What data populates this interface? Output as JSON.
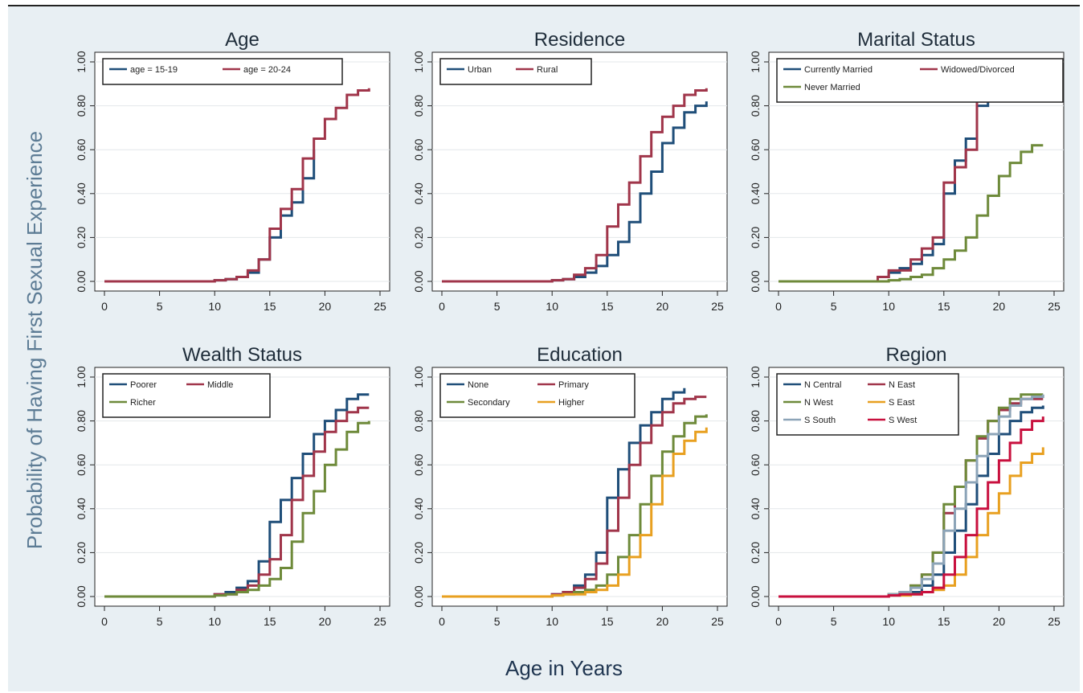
{
  "figure": {
    "xlabel": "Age in Years",
    "ylabel": "Probability of Having First Sexual Experience"
  },
  "chart_data": [
    {
      "type": "line",
      "title": "Age",
      "xlim": [
        0,
        25
      ],
      "ylim": [
        0,
        1
      ],
      "x_ticks": [
        "0",
        "5",
        "10",
        "15",
        "20",
        "25"
      ],
      "y_ticks": [
        "0.00",
        "0.20",
        "0.40",
        "0.60",
        "0.80",
        "1.00"
      ],
      "legend_columns": 2,
      "series": [
        {
          "name": "age = 15-19",
          "color": "#1f4e79",
          "x": [
            0,
            10,
            11,
            12,
            13,
            14,
            15,
            16,
            17,
            18,
            19
          ],
          "y": [
            0,
            0.005,
            0.01,
            0.02,
            0.04,
            0.1,
            0.2,
            0.3,
            0.36,
            0.47,
            0.6
          ]
        },
        {
          "name": "age = 20-24",
          "color": "#a0354a",
          "x": [
            0,
            10,
            11,
            12,
            13,
            14,
            15,
            16,
            17,
            18,
            19,
            20,
            21,
            22,
            23,
            24
          ],
          "y": [
            0,
            0.005,
            0.01,
            0.02,
            0.05,
            0.1,
            0.24,
            0.33,
            0.42,
            0.56,
            0.65,
            0.74,
            0.79,
            0.85,
            0.87,
            0.88
          ]
        }
      ]
    },
    {
      "type": "line",
      "title": "Residence",
      "xlim": [
        0,
        25
      ],
      "ylim": [
        0,
        1
      ],
      "x_ticks": [
        "0",
        "5",
        "10",
        "15",
        "20",
        "25"
      ],
      "y_ticks": [
        "0.00",
        "0.20",
        "0.40",
        "0.60",
        "0.80",
        "1.00"
      ],
      "legend_columns": 2,
      "series": [
        {
          "name": "Urban",
          "color": "#1f4e79",
          "x": [
            0,
            10,
            11,
            12,
            13,
            14,
            15,
            16,
            17,
            18,
            19,
            20,
            21,
            22,
            23,
            24
          ],
          "y": [
            0,
            0.005,
            0.01,
            0.02,
            0.04,
            0.07,
            0.12,
            0.18,
            0.27,
            0.4,
            0.5,
            0.63,
            0.7,
            0.77,
            0.8,
            0.82
          ]
        },
        {
          "name": "Rural",
          "color": "#a0354a",
          "x": [
            0,
            10,
            11,
            12,
            13,
            14,
            15,
            16,
            17,
            18,
            19,
            20,
            21,
            22,
            23,
            24
          ],
          "y": [
            0,
            0.005,
            0.01,
            0.03,
            0.06,
            0.12,
            0.25,
            0.35,
            0.45,
            0.57,
            0.68,
            0.75,
            0.8,
            0.85,
            0.87,
            0.88
          ]
        }
      ]
    },
    {
      "type": "line",
      "title": "Marital Status",
      "xlim": [
        0,
        25
      ],
      "ylim": [
        0,
        1
      ],
      "x_ticks": [
        "0",
        "5",
        "10",
        "15",
        "20",
        "25"
      ],
      "y_ticks": [
        "0.00",
        "0.20",
        "0.40",
        "0.60",
        "0.80",
        "1.00"
      ],
      "legend_columns": 2,
      "series": [
        {
          "name": "Currently Married",
          "color": "#1f4e79",
          "x": [
            0,
            9,
            10,
            11,
            12,
            13,
            14,
            15,
            16,
            17,
            18,
            19
          ],
          "y": [
            0,
            0.02,
            0.04,
            0.06,
            0.08,
            0.12,
            0.17,
            0.4,
            0.55,
            0.65,
            0.8,
            0.85
          ]
        },
        {
          "name": "Widowed/Divorced",
          "color": "#a0354a",
          "x": [
            0,
            9,
            10,
            11,
            12,
            13,
            14,
            15,
            16,
            17,
            18,
            19
          ],
          "y": [
            0,
            0.02,
            0.05,
            0.05,
            0.1,
            0.15,
            0.2,
            0.45,
            0.52,
            0.6,
            0.82,
            0.86
          ]
        },
        {
          "name": "Never Married",
          "color": "#6e8a3a",
          "x": [
            0,
            10,
            11,
            12,
            13,
            14,
            15,
            16,
            17,
            18,
            19,
            20,
            21,
            22,
            23,
            24
          ],
          "y": [
            0,
            0.005,
            0.01,
            0.02,
            0.03,
            0.06,
            0.1,
            0.14,
            0.2,
            0.3,
            0.39,
            0.48,
            0.54,
            0.59,
            0.62,
            0.62
          ]
        }
      ]
    },
    {
      "type": "line",
      "title": "Wealth Status",
      "xlim": [
        0,
        25
      ],
      "ylim": [
        0,
        1
      ],
      "x_ticks": [
        "0",
        "5",
        "10",
        "15",
        "20",
        "25"
      ],
      "y_ticks": [
        "0.00",
        "0.20",
        "0.40",
        "0.60",
        "0.80",
        "1.00"
      ],
      "legend_columns": 2,
      "series": [
        {
          "name": "Poorer",
          "color": "#1f4e79",
          "x": [
            0,
            10,
            11,
            12,
            13,
            14,
            15,
            16,
            17,
            18,
            19,
            20,
            21,
            22,
            23,
            24
          ],
          "y": [
            0,
            0.01,
            0.02,
            0.04,
            0.07,
            0.16,
            0.34,
            0.44,
            0.54,
            0.65,
            0.74,
            0.8,
            0.85,
            0.9,
            0.92,
            0.92
          ]
        },
        {
          "name": "Middle",
          "color": "#a0354a",
          "x": [
            0,
            10,
            11,
            12,
            13,
            14,
            15,
            16,
            17,
            18,
            19,
            20,
            21,
            22,
            23,
            24
          ],
          "y": [
            0,
            0.01,
            0.01,
            0.03,
            0.05,
            0.1,
            0.17,
            0.28,
            0.44,
            0.55,
            0.66,
            0.75,
            0.8,
            0.84,
            0.86,
            0.86
          ]
        },
        {
          "name": "Richer",
          "color": "#6e8a3a",
          "x": [
            0,
            10,
            11,
            12,
            13,
            14,
            15,
            16,
            17,
            18,
            19,
            20,
            21,
            22,
            23,
            24
          ],
          "y": [
            0,
            0.005,
            0.01,
            0.02,
            0.03,
            0.05,
            0.08,
            0.13,
            0.25,
            0.38,
            0.48,
            0.6,
            0.67,
            0.75,
            0.79,
            0.8
          ]
        }
      ]
    },
    {
      "type": "line",
      "title": "Education",
      "xlim": [
        0,
        25
      ],
      "ylim": [
        0,
        1
      ],
      "x_ticks": [
        "0",
        "5",
        "10",
        "15",
        "20",
        "25"
      ],
      "y_ticks": [
        "0.00",
        "0.20",
        "0.40",
        "0.60",
        "0.80",
        "1.00"
      ],
      "legend_columns": 2,
      "series": [
        {
          "name": "None",
          "color": "#1f4e79",
          "x": [
            0,
            10,
            11,
            12,
            13,
            14,
            15,
            16,
            17,
            18,
            19,
            20,
            21,
            22
          ],
          "y": [
            0,
            0.01,
            0.02,
            0.05,
            0.1,
            0.2,
            0.45,
            0.58,
            0.7,
            0.78,
            0.84,
            0.9,
            0.93,
            0.95
          ]
        },
        {
          "name": "Primary",
          "color": "#a0354a",
          "x": [
            0,
            10,
            11,
            12,
            13,
            14,
            15,
            16,
            17,
            18,
            19,
            20,
            21,
            22,
            23,
            24
          ],
          "y": [
            0,
            0.01,
            0.02,
            0.04,
            0.08,
            0.15,
            0.3,
            0.45,
            0.6,
            0.7,
            0.78,
            0.84,
            0.88,
            0.9,
            0.91,
            0.91
          ]
        },
        {
          "name": "Secondary",
          "color": "#6e8a3a",
          "x": [
            0,
            10,
            11,
            12,
            13,
            14,
            15,
            16,
            17,
            18,
            19,
            20,
            21,
            22,
            23,
            24
          ],
          "y": [
            0,
            0.005,
            0.01,
            0.02,
            0.03,
            0.05,
            0.1,
            0.18,
            0.28,
            0.42,
            0.55,
            0.66,
            0.73,
            0.79,
            0.82,
            0.83
          ]
        },
        {
          "name": "Higher",
          "color": "#e8a020",
          "x": [
            0,
            10,
            11,
            12,
            13,
            14,
            15,
            16,
            17,
            18,
            19,
            20,
            21,
            22,
            23,
            24
          ],
          "y": [
            0,
            0.005,
            0.01,
            0.01,
            0.02,
            0.03,
            0.05,
            0.1,
            0.18,
            0.28,
            0.42,
            0.55,
            0.65,
            0.71,
            0.75,
            0.77
          ]
        }
      ]
    },
    {
      "type": "line",
      "title": "Region",
      "xlim": [
        0,
        25
      ],
      "ylim": [
        0,
        1
      ],
      "x_ticks": [
        "0",
        "5",
        "10",
        "15",
        "20",
        "25"
      ],
      "y_ticks": [
        "0.00",
        "0.20",
        "0.40",
        "0.60",
        "0.80",
        "1.00"
      ],
      "legend_columns": 2,
      "series": [
        {
          "name": "N Central",
          "color": "#1f4e79",
          "x": [
            0,
            10,
            11,
            12,
            13,
            14,
            15,
            16,
            17,
            18,
            19,
            20,
            21,
            22,
            23,
            24
          ],
          "y": [
            0,
            0.005,
            0.01,
            0.02,
            0.05,
            0.1,
            0.2,
            0.3,
            0.42,
            0.55,
            0.65,
            0.74,
            0.8,
            0.84,
            0.86,
            0.87
          ]
        },
        {
          "name": "N East",
          "color": "#a0354a",
          "x": [
            0,
            10,
            11,
            12,
            13,
            14,
            15,
            16,
            17,
            18,
            19,
            20,
            21,
            22,
            23,
            24
          ],
          "y": [
            0,
            0.01,
            0.02,
            0.05,
            0.1,
            0.2,
            0.38,
            0.5,
            0.62,
            0.72,
            0.8,
            0.85,
            0.88,
            0.9,
            0.9,
            0.9
          ]
        },
        {
          "name": "N West",
          "color": "#6e8a3a",
          "x": [
            0,
            10,
            11,
            12,
            13,
            14,
            15,
            16,
            17,
            18,
            19,
            20,
            21,
            22,
            23,
            24
          ],
          "y": [
            0,
            0.01,
            0.02,
            0.05,
            0.1,
            0.2,
            0.42,
            0.5,
            0.62,
            0.73,
            0.8,
            0.86,
            0.9,
            0.92,
            0.92,
            0.92
          ]
        },
        {
          "name": "S East",
          "color": "#e8a020",
          "x": [
            0,
            10,
            11,
            12,
            13,
            14,
            15,
            16,
            17,
            18,
            19,
            20,
            21,
            22,
            23,
            24
          ],
          "y": [
            0,
            0.005,
            0.005,
            0.01,
            0.02,
            0.03,
            0.05,
            0.1,
            0.18,
            0.28,
            0.38,
            0.47,
            0.55,
            0.61,
            0.65,
            0.68
          ]
        },
        {
          "name": "S South",
          "color": "#8ca4b8",
          "x": [
            0,
            10,
            11,
            12,
            13,
            14,
            15,
            16,
            17,
            18,
            19,
            20,
            21,
            22,
            23,
            24
          ],
          "y": [
            0,
            0.01,
            0.02,
            0.04,
            0.08,
            0.15,
            0.3,
            0.4,
            0.52,
            0.64,
            0.74,
            0.82,
            0.87,
            0.9,
            0.91,
            0.92
          ]
        },
        {
          "name": "S West",
          "color": "#c8103e",
          "x": [
            0,
            10,
            11,
            12,
            13,
            14,
            15,
            16,
            17,
            18,
            19,
            20,
            21,
            22,
            23,
            24
          ],
          "y": [
            0,
            0.005,
            0.01,
            0.01,
            0.02,
            0.04,
            0.1,
            0.18,
            0.28,
            0.4,
            0.52,
            0.62,
            0.7,
            0.76,
            0.8,
            0.82
          ]
        }
      ]
    }
  ]
}
